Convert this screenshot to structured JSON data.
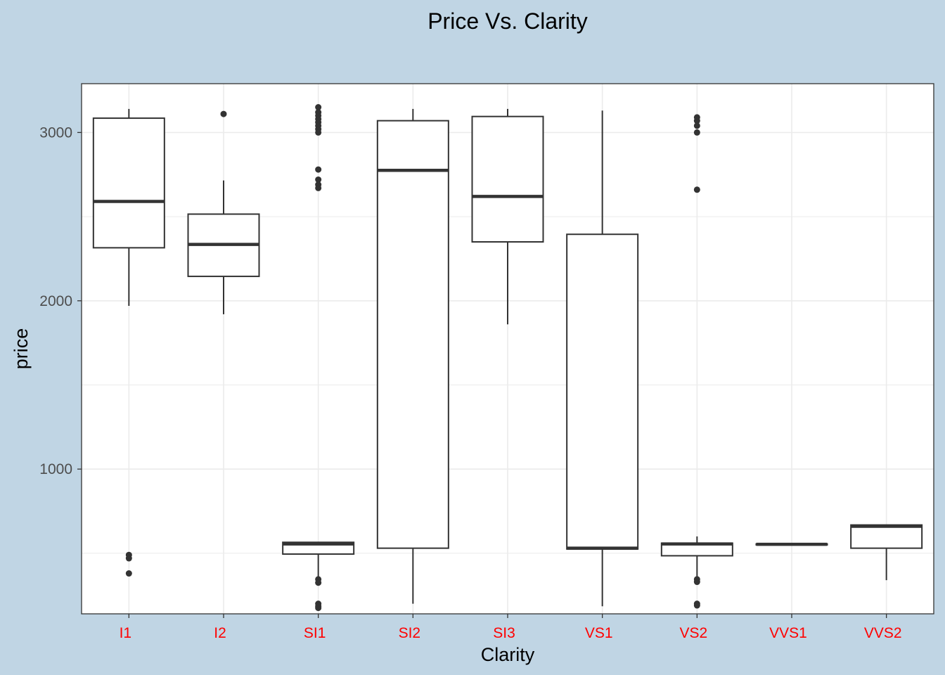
{
  "chart_data": {
    "type": "boxplot",
    "title": "Price Vs. Clarity",
    "xlabel": "Clarity",
    "ylabel": "price",
    "ylim": [
      140,
      3290
    ],
    "y_ticks": [
      1000,
      2000,
      3000
    ],
    "y_tick_labels": [
      "1000",
      "2000",
      "3000"
    ],
    "grid": true,
    "colors": {
      "background": "#c0d5e4",
      "panel": "#ffffff",
      "grid": "#ebebeb",
      "box_line": "#333333",
      "x_tick_labels": "#ff0000",
      "y_tick_labels": "#4d4d4d"
    },
    "categories": [
      "I1",
      "I2",
      "SI1",
      "SI2",
      "SI3",
      "VS1",
      "VS2",
      "VVS1",
      "VVS2"
    ],
    "boxes": [
      {
        "category": "I1",
        "whisker_low": 1970,
        "q1": 2315,
        "median": 2590,
        "q3": 3085,
        "whisker_high": 3140,
        "outliers": [
          490,
          470,
          380
        ]
      },
      {
        "category": "I2",
        "whisker_low": 1920,
        "q1": 2145,
        "median": 2335,
        "q3": 2515,
        "whisker_high": 2715,
        "outliers": [
          3110
        ]
      },
      {
        "category": "SI1",
        "whisker_low": 340,
        "q1": 495,
        "median": 555,
        "q3": 565,
        "whisker_high": 565,
        "outliers": [
          3150,
          3120,
          3100,
          3080,
          3060,
          3040,
          3020,
          3000,
          2780,
          2720,
          2690,
          2670,
          345,
          325,
          200,
          185,
          175
        ]
      },
      {
        "category": "SI2",
        "whisker_low": 200,
        "q1": 530,
        "median": 2775,
        "q3": 3070,
        "whisker_high": 3140,
        "outliers": []
      },
      {
        "category": "SI3",
        "whisker_low": 1860,
        "q1": 2350,
        "median": 2620,
        "q3": 3095,
        "whisker_high": 3140,
        "outliers": []
      },
      {
        "category": "VS1",
        "whisker_low": 185,
        "q1": 525,
        "median": 530,
        "q3": 2395,
        "whisker_high": 3130,
        "outliers": []
      },
      {
        "category": "VS2",
        "whisker_low": 350,
        "q1": 485,
        "median": 555,
        "q3": 560,
        "whisker_high": 600,
        "outliers": [
          3090,
          3070,
          3040,
          3000,
          2660,
          345,
          330,
          200,
          190
        ]
      },
      {
        "category": "VVS1",
        "whisker_low": 550,
        "q1": 550,
        "median": 553,
        "q3": 555,
        "whisker_high": 555,
        "outliers": []
      },
      {
        "category": "VVS2",
        "whisker_low": 340,
        "q1": 530,
        "median": 660,
        "q3": 668,
        "whisker_high": 668,
        "outliers": []
      }
    ]
  }
}
